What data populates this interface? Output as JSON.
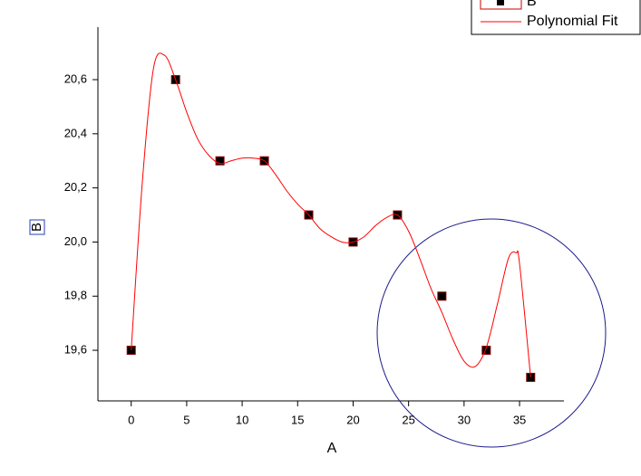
{
  "chart_data": {
    "type": "line",
    "x_label": "A",
    "y_label": "B",
    "xlim": [
      -3,
      39
    ],
    "ylim": [
      19.413,
      20.794
    ],
    "xticks": [
      0,
      5,
      10,
      15,
      20,
      25,
      30,
      35
    ],
    "yticks": [
      {
        "value": 19.6,
        "label": "19,6"
      },
      {
        "value": 19.8,
        "label": "19,8"
      },
      {
        "value": 20.0,
        "label": "20,0"
      },
      {
        "value": 20.2,
        "label": "20,2"
      },
      {
        "value": 20.4,
        "label": "20,4"
      },
      {
        "value": 20.6,
        "label": "20,6"
      }
    ],
    "legend": "top-right",
    "series": [
      {
        "name": "B",
        "color": "#000000",
        "mode": "markers",
        "x": [
          0,
          4,
          8,
          12,
          16,
          20,
          24,
          28,
          32,
          36
        ],
        "values": [
          19.6,
          20.6,
          20.3,
          20.3,
          20.1,
          20.0,
          20.1,
          19.8,
          19.6,
          19.5
        ]
      },
      {
        "name": "Polynomial Fit",
        "color": "#ff0000",
        "mode": "line",
        "x": [
          0,
          1,
          2,
          3,
          4,
          5,
          6,
          7,
          8,
          9,
          10,
          11,
          12,
          13,
          14,
          15,
          16,
          17,
          18,
          19,
          20,
          21,
          22,
          23,
          24,
          25,
          26,
          27,
          28,
          29,
          30,
          31,
          32,
          33,
          34,
          34.7,
          35,
          36
        ],
        "values": [
          19.6,
          20.22,
          20.64,
          20.69,
          20.6,
          20.48,
          20.38,
          20.32,
          20.29,
          20.3,
          20.31,
          20.31,
          20.3,
          20.25,
          20.19,
          20.14,
          20.1,
          20.05,
          20.02,
          20.0,
          20.0,
          20.02,
          20.06,
          20.09,
          20.1,
          20.04,
          19.94,
          19.83,
          19.74,
          19.64,
          19.56,
          19.54,
          19.61,
          19.77,
          19.94,
          19.96,
          19.92,
          19.5
        ]
      }
    ]
  }
}
